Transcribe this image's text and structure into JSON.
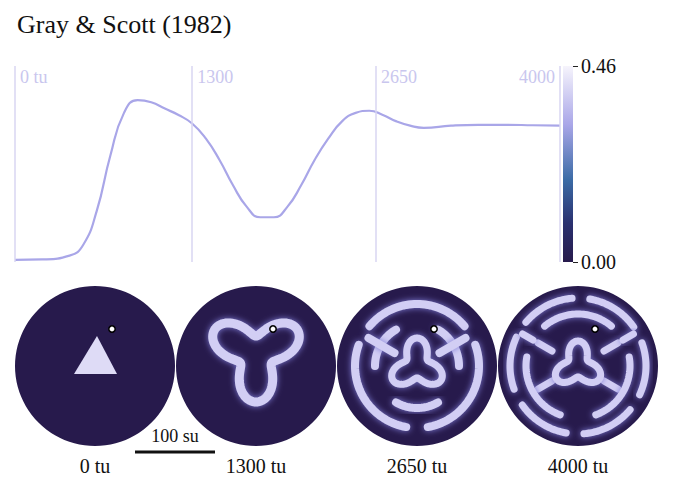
{
  "chart_data": {
    "type": "line",
    "title": "Gray & Scott (1982)",
    "x": [
      0,
      200,
      400,
      500,
      600,
      700,
      800,
      900,
      1000,
      1100,
      1200,
      1300,
      1400,
      1500,
      1600,
      1700,
      1800,
      1900,
      2000,
      2100,
      2200,
      2300,
      2400,
      2500,
      2600,
      2700,
      2800,
      2900,
      3000,
      3200,
      3400,
      3600,
      3800,
      4000
    ],
    "values": [
      0.005,
      0.006,
      0.015,
      0.04,
      0.12,
      0.25,
      0.35,
      0.38,
      0.375,
      0.36,
      0.345,
      0.325,
      0.29,
      0.24,
      0.18,
      0.13,
      0.105,
      0.105,
      0.13,
      0.18,
      0.24,
      0.29,
      0.33,
      0.35,
      0.355,
      0.345,
      0.33,
      0.32,
      0.315,
      0.32,
      0.322,
      0.322,
      0.321,
      0.32
    ],
    "color": "#a9a6e8",
    "xlim": [
      0,
      4000
    ],
    "xticks": [
      {
        "value": 0,
        "label": "0 tu"
      },
      1300,
      2650,
      4000
    ],
    "ylim": [
      0,
      0.46
    ],
    "tick_labels": "x",
    "grid": true,
    "colorbar": {
      "range": [
        0,
        0.46
      ],
      "ticks": [
        {
          "value": 0,
          "label": "0.00"
        },
        0.46
      ]
    }
  },
  "snapshots": {
    "labels": [
      "0 tu",
      "1300 tu",
      "2650 tu",
      "4000 tu"
    ]
  },
  "scale_bar": {
    "label": "100 su"
  }
}
